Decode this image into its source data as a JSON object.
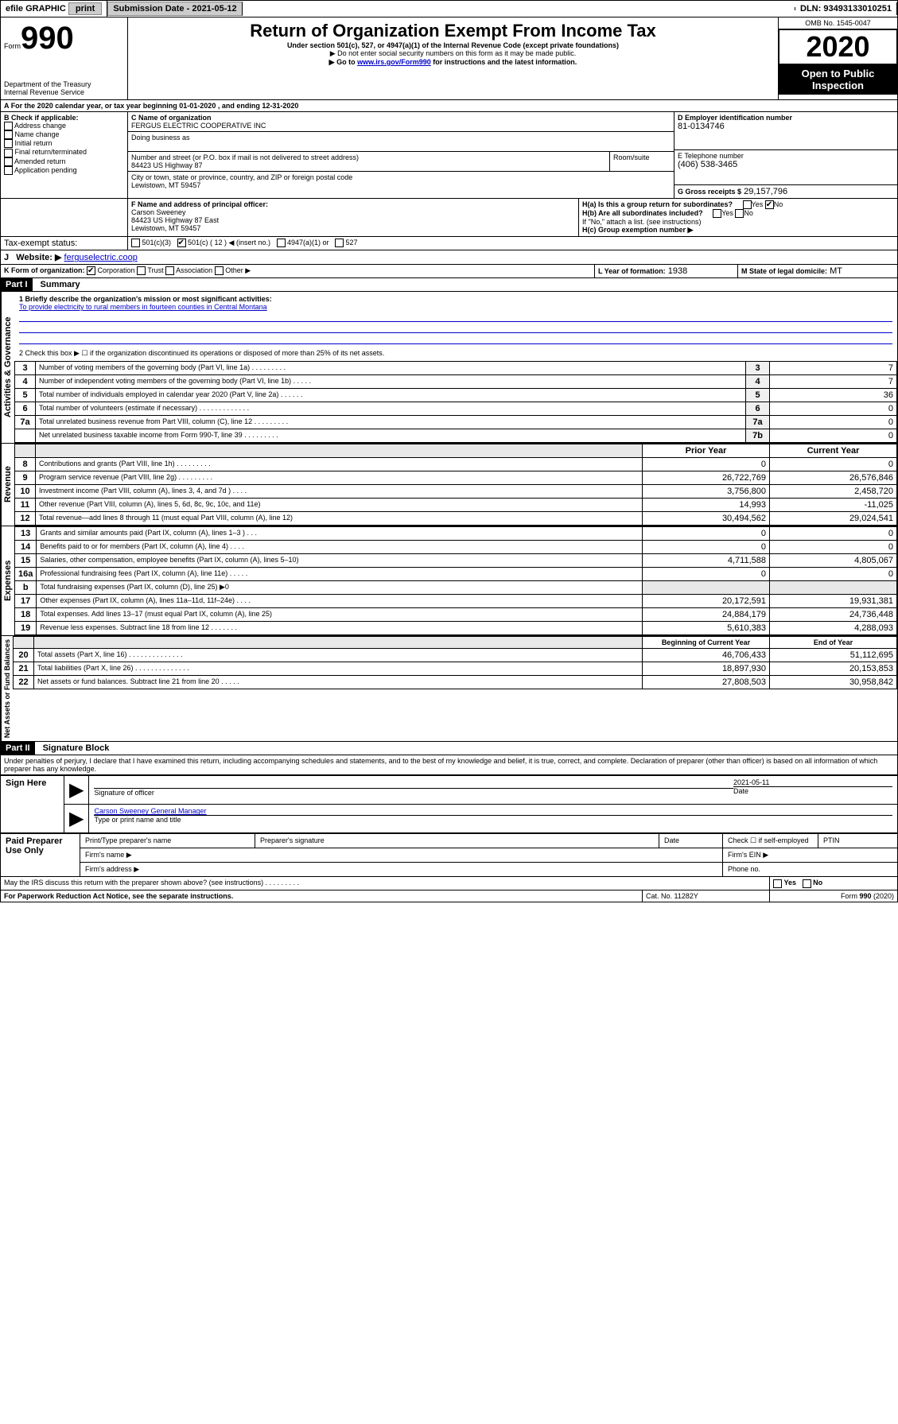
{
  "topbar": {
    "efile": "efile GRAPHIC",
    "print": "print",
    "submission_label": "Submission Date - 2021-05-12",
    "dln_label": "DLN: 93493133010251"
  },
  "header": {
    "form_label": "Form",
    "form_number": "990",
    "title": "Return of Organization Exempt From Income Tax",
    "subtitle": "Under section 501(c), 527, or 4947(a)(1) of the Internal Revenue Code (except private foundations)",
    "note1": "▶ Do not enter social security numbers on this form as it may be made public.",
    "note2_pre": "▶ Go to ",
    "note2_link": "www.irs.gov/Form990",
    "note2_post": " for instructions and the latest information.",
    "dept": "Department of the Treasury",
    "irs": "Internal Revenue Service",
    "omb": "OMB No. 1545-0047",
    "year": "2020",
    "open_public": "Open to Public Inspection"
  },
  "period": {
    "text_a": "For the 2020 calendar year, or tax year beginning ",
    "begin": "01-01-2020",
    "text_b": " , and ending ",
    "end": "12-31-2020"
  },
  "boxB": {
    "label": "B Check if applicable:",
    "opts": [
      "Address change",
      "Name change",
      "Initial return",
      "Final return/terminated",
      "Amended return",
      "Application pending"
    ]
  },
  "boxC": {
    "label": "C Name of organization",
    "name": "FERGUS ELECTRIC COOPERATIVE INC",
    "dba_label": "Doing business as",
    "addr_label": "Number and street (or P.O. box if mail is not delivered to street address)",
    "room_label": "Room/suite",
    "addr": "84423 US Highway 87",
    "city_label": "City or town, state or province, country, and ZIP or foreign postal code",
    "city": "Lewistown, MT  59457"
  },
  "boxD": {
    "label": "D Employer identification number",
    "value": "81-0134746"
  },
  "boxE": {
    "label": "E Telephone number",
    "value": "(406) 538-3465"
  },
  "boxG": {
    "label": "G Gross receipts $",
    "value": "29,157,796"
  },
  "boxF": {
    "label": "F  Name and address of principal officer:",
    "name": "Carson Sweeney",
    "addr1": "84423 US Highway 87 East",
    "addr2": "Lewistown, MT  59457"
  },
  "boxH": {
    "a_label": "H(a)  Is this a group return for subordinates?",
    "a_no": true,
    "b_label": "H(b)  Are all subordinates included?",
    "b_note": "If \"No,\" attach a list. (see instructions)",
    "c_label": "H(c)  Group exemption number ▶"
  },
  "taxexempt": {
    "label": "Tax-exempt status:",
    "c12_checked": true,
    "insert": "◀ (insert no.)"
  },
  "boxI": {
    "label": "I",
    "site_label": "Website: ▶",
    "site": "ferguselectric.coop"
  },
  "boxJ": {
    "label": "J"
  },
  "boxK": {
    "label": "K Form of organization:",
    "corp_checked": true,
    "opts": [
      "Corporation",
      "Trust",
      "Association",
      "Other ▶"
    ]
  },
  "boxL": {
    "label": "L Year of formation:",
    "value": "1938"
  },
  "boxM": {
    "label": "M State of legal domicile:",
    "value": "MT"
  },
  "part1": {
    "hdr": "Part I",
    "title": "Summary",
    "q1_label": "1  Briefly describe the organization's mission or most significant activities:",
    "q1_text": "To provide electricity to rural members in fourteen counties in Central Montana",
    "q2": "2    Check this box ▶ ☐  if the organization discontinued its operations or disposed of more than 25% of its net assets.",
    "governance": [
      {
        "n": "3",
        "t": "Number of voting members of the governing body (Part VI, line 1a)   .    .    .    .    .    .    .    .    .",
        "b": "3",
        "v": "7"
      },
      {
        "n": "4",
        "t": "Number of independent voting members of the governing body (Part VI, line 1b)   .    .    .    .    .",
        "b": "4",
        "v": "7"
      },
      {
        "n": "5",
        "t": "Total number of individuals employed in calendar year 2020 (Part V, line 2a)   .    .    .    .    .    .",
        "b": "5",
        "v": "36"
      },
      {
        "n": "6",
        "t": "Total number of volunteers (estimate if necessary)   .    .    .    .    .    .    .    .    .    .    .    .    .",
        "b": "6",
        "v": "0"
      },
      {
        "n": "7a",
        "t": "Total unrelated business revenue from Part VIII, column (C), line 12   .    .    .    .    .    .    .    .    .",
        "b": "7a",
        "v": "0"
      },
      {
        "n": "",
        "t": "Net unrelated business taxable income from Form 990-T, line 39   .    .    .    .    .    .    .    .    .",
        "b": "7b",
        "v": "0"
      }
    ],
    "col_prior": "Prior Year",
    "col_current": "Current Year",
    "revenue": [
      {
        "n": "8",
        "t": "Contributions and grants (Part VIII, line 1h)   .    .    .    .    .    .    .    .    .",
        "p": "0",
        "c": "0"
      },
      {
        "n": "9",
        "t": "Program service revenue (Part VIII, line 2g)   .    .    .    .    .    .    .    .    .",
        "p": "26,722,769",
        "c": "26,576,846"
      },
      {
        "n": "10",
        "t": "Investment income (Part VIII, column (A), lines 3, 4, and 7d )   .    .    .    .",
        "p": "3,756,800",
        "c": "2,458,720"
      },
      {
        "n": "11",
        "t": "Other revenue (Part VIII, column (A), lines 5, 6d, 8c, 9c, 10c, and 11e)",
        "p": "14,993",
        "c": "-11,025"
      },
      {
        "n": "12",
        "t": "Total revenue—add lines 8 through 11 (must equal Part VIII, column (A), line 12)",
        "p": "30,494,562",
        "c": "29,024,541"
      }
    ],
    "expenses": [
      {
        "n": "13",
        "t": "Grants and similar amounts paid (Part IX, column (A), lines 1–3 )   .    .    .",
        "p": "0",
        "c": "0"
      },
      {
        "n": "14",
        "t": "Benefits paid to or for members (Part IX, column (A), line 4)   .    .    .    .",
        "p": "0",
        "c": "0"
      },
      {
        "n": "15",
        "t": "Salaries, other compensation, employee benefits (Part IX, column (A), lines 5–10)",
        "p": "4,711,588",
        "c": "4,805,067"
      },
      {
        "n": "16a",
        "t": "Professional fundraising fees (Part IX, column (A), line 11e)   .    .    .    .    .",
        "p": "0",
        "c": "0"
      },
      {
        "n": "b",
        "t": "Total fundraising expenses (Part IX, column (D), line 25) ▶0",
        "p": "",
        "c": "",
        "shade": true
      },
      {
        "n": "17",
        "t": "Other expenses (Part IX, column (A), lines 11a–11d, 11f–24e)   .    .    .    .",
        "p": "20,172,591",
        "c": "19,931,381"
      },
      {
        "n": "18",
        "t": "Total expenses. Add lines 13–17 (must equal Part IX, column (A), line 25)",
        "p": "24,884,179",
        "c": "24,736,448"
      },
      {
        "n": "19",
        "t": "Revenue less expenses. Subtract line 18 from line 12   .    .    .    .    .    .    .",
        "p": "5,610,383",
        "c": "4,288,093"
      }
    ],
    "col_begin": "Beginning of Current Year",
    "col_end": "End of Year",
    "netassets": [
      {
        "n": "20",
        "t": "Total assets (Part X, line 16)   .    .    .    .    .    .    .    .    .    .    .    .    .    .",
        "p": "46,706,433",
        "c": "51,112,695"
      },
      {
        "n": "21",
        "t": "Total liabilities (Part X, line 26)   .    .    .    .    .    .    .    .    .    .    .    .    .    .",
        "p": "18,897,930",
        "c": "20,153,853"
      },
      {
        "n": "22",
        "t": "Net assets or fund balances. Subtract line 21 from line 20   .    .    .    .    .",
        "p": "27,808,503",
        "c": "30,958,842"
      }
    ],
    "sec_gov": "Activities & Governance",
    "sec_rev": "Revenue",
    "sec_exp": "Expenses",
    "sec_net": "Net Assets or Fund Balances"
  },
  "part2": {
    "hdr": "Part II",
    "title": "Signature Block",
    "perjury": "Under penalties of perjury, I declare that I have examined this return, including accompanying schedules and statements, and to the best of my knowledge and belief, it is true, correct, and complete. Declaration of preparer (other than officer) is based on all information of which preparer has any knowledge.",
    "sign_here": "Sign Here",
    "sig_officer": "Signature of officer",
    "sig_date": "2021-05-11",
    "date_label": "Date",
    "officer_name": "Carson Sweeney  General Manager",
    "name_title_label": "Type or print name and title",
    "paid": "Paid Preparer Use Only",
    "prep_name": "Print/Type preparer's name",
    "prep_sig": "Preparer's signature",
    "prep_date": "Date",
    "self_emp": "Check ☐ if self-employed",
    "ptin": "PTIN",
    "firm_name": "Firm's name   ▶",
    "firm_ein": "Firm's EIN ▶",
    "firm_addr": "Firm's address ▶",
    "phone": "Phone no."
  },
  "footer": {
    "discuss": "May the IRS discuss this return with the preparer shown above? (see instructions)    .    .    .    .    .    .    .    .    .",
    "yes": "Yes",
    "no": "No",
    "pra": "For Paperwork Reduction Act Notice, see the separate instructions.",
    "cat": "Cat. No. 11282Y",
    "form": "Form 990 (2020)"
  }
}
